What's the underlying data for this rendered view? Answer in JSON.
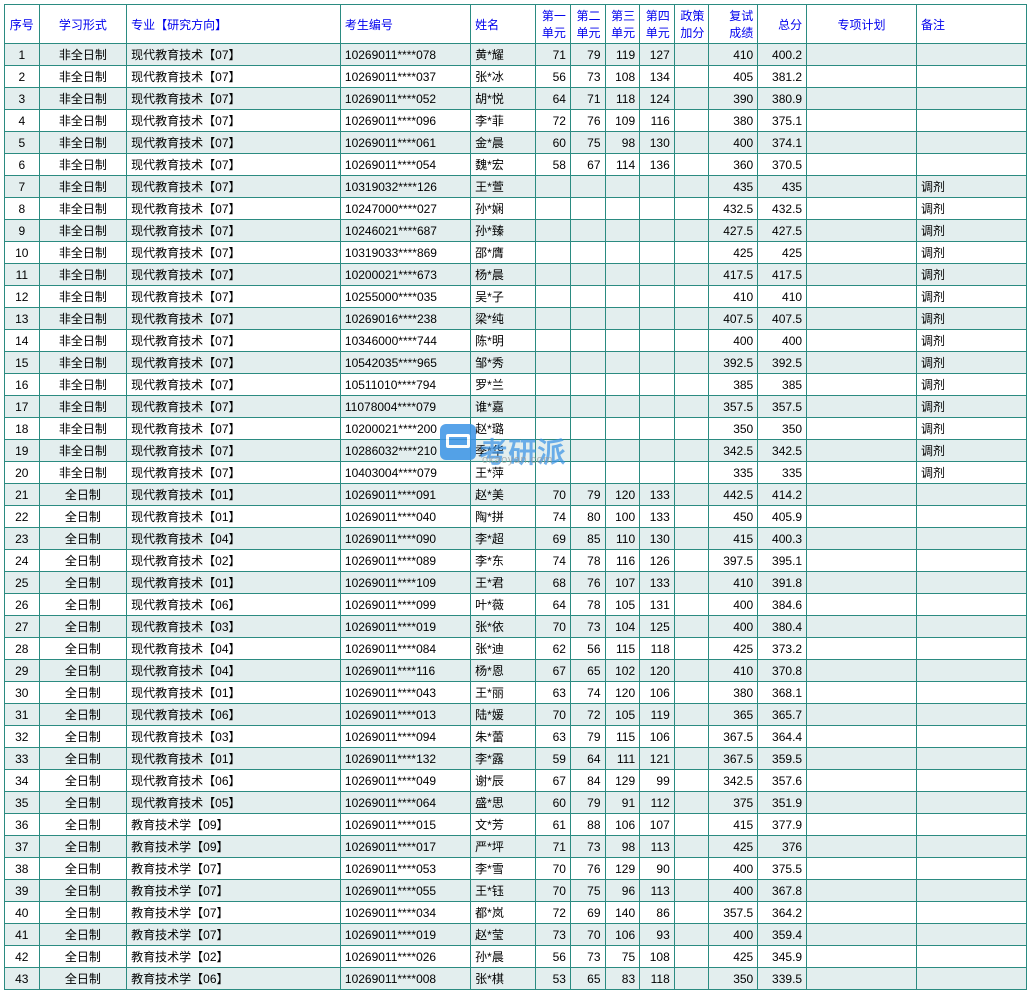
{
  "colors": {
    "border": "#2b8b81",
    "header_text": "#0000ee",
    "row_odd_bg": "#e3eeee",
    "row_even_bg": "#ffffff",
    "watermark": "#3b94e6"
  },
  "watermark": {
    "text": "考研派",
    "url": "okaoyan.com"
  },
  "columns": [
    {
      "key": "idx",
      "label": "序号",
      "cls": "c-idx"
    },
    {
      "key": "mode",
      "label": "学习形式",
      "cls": "c-mode"
    },
    {
      "key": "major",
      "label": "专业【研究方向】",
      "cls": "c-major"
    },
    {
      "key": "exam",
      "label": "考生编号",
      "cls": "c-exam"
    },
    {
      "key": "name",
      "label": "姓名",
      "cls": "c-name"
    },
    {
      "key": "u1",
      "label": "第一单元",
      "cls": "c-u"
    },
    {
      "key": "u2",
      "label": "第二单元",
      "cls": "c-u"
    },
    {
      "key": "u3",
      "label": "第三单元",
      "cls": "c-u"
    },
    {
      "key": "u4",
      "label": "第四单元",
      "cls": "c-u"
    },
    {
      "key": "pol",
      "label": "政策加分",
      "cls": "c-pol"
    },
    {
      "key": "re",
      "label": "复试成绩",
      "cls": "c-re"
    },
    {
      "key": "tot",
      "label": "总分",
      "cls": "c-tot"
    },
    {
      "key": "plan",
      "label": "专项计划",
      "cls": "c-plan"
    },
    {
      "key": "note",
      "label": "备注",
      "cls": "c-note"
    }
  ],
  "rows": [
    {
      "idx": "1",
      "mode": "非全日制",
      "major": "现代教育技术【07】",
      "exam": "10269011****078",
      "name": "黄*耀",
      "u1": "71",
      "u2": "79",
      "u3": "119",
      "u4": "127",
      "pol": "",
      "re": "410",
      "tot": "400.2",
      "plan": "",
      "note": ""
    },
    {
      "idx": "2",
      "mode": "非全日制",
      "major": "现代教育技术【07】",
      "exam": "10269011****037",
      "name": "张*冰",
      "u1": "56",
      "u2": "73",
      "u3": "108",
      "u4": "134",
      "pol": "",
      "re": "405",
      "tot": "381.2",
      "plan": "",
      "note": ""
    },
    {
      "idx": "3",
      "mode": "非全日制",
      "major": "现代教育技术【07】",
      "exam": "10269011****052",
      "name": "胡*悦",
      "u1": "64",
      "u2": "71",
      "u3": "118",
      "u4": "124",
      "pol": "",
      "re": "390",
      "tot": "380.9",
      "plan": "",
      "note": ""
    },
    {
      "idx": "4",
      "mode": "非全日制",
      "major": "现代教育技术【07】",
      "exam": "10269011****096",
      "name": "李*菲",
      "u1": "72",
      "u2": "76",
      "u3": "109",
      "u4": "116",
      "pol": "",
      "re": "380",
      "tot": "375.1",
      "plan": "",
      "note": ""
    },
    {
      "idx": "5",
      "mode": "非全日制",
      "major": "现代教育技术【07】",
      "exam": "10269011****061",
      "name": "金*晨",
      "u1": "60",
      "u2": "75",
      "u3": "98",
      "u4": "130",
      "pol": "",
      "re": "400",
      "tot": "374.1",
      "plan": "",
      "note": ""
    },
    {
      "idx": "6",
      "mode": "非全日制",
      "major": "现代教育技术【07】",
      "exam": "10269011****054",
      "name": "魏*宏",
      "u1": "58",
      "u2": "67",
      "u3": "114",
      "u4": "136",
      "pol": "",
      "re": "360",
      "tot": "370.5",
      "plan": "",
      "note": ""
    },
    {
      "idx": "7",
      "mode": "非全日制",
      "major": "现代教育技术【07】",
      "exam": "10319032****126",
      "name": "王*萱",
      "u1": "",
      "u2": "",
      "u3": "",
      "u4": "",
      "pol": "",
      "re": "435",
      "tot": "435",
      "plan": "",
      "note": "调剂"
    },
    {
      "idx": "8",
      "mode": "非全日制",
      "major": "现代教育技术【07】",
      "exam": "10247000****027",
      "name": "孙*娴",
      "u1": "",
      "u2": "",
      "u3": "",
      "u4": "",
      "pol": "",
      "re": "432.5",
      "tot": "432.5",
      "plan": "",
      "note": "调剂"
    },
    {
      "idx": "9",
      "mode": "非全日制",
      "major": "现代教育技术【07】",
      "exam": "10246021****687",
      "name": "孙*臻",
      "u1": "",
      "u2": "",
      "u3": "",
      "u4": "",
      "pol": "",
      "re": "427.5",
      "tot": "427.5",
      "plan": "",
      "note": "调剂"
    },
    {
      "idx": "10",
      "mode": "非全日制",
      "major": "现代教育技术【07】",
      "exam": "10319033****869",
      "name": "邵*膺",
      "u1": "",
      "u2": "",
      "u3": "",
      "u4": "",
      "pol": "",
      "re": "425",
      "tot": "425",
      "plan": "",
      "note": "调剂"
    },
    {
      "idx": "11",
      "mode": "非全日制",
      "major": "现代教育技术【07】",
      "exam": "10200021****673",
      "name": "杨*晨",
      "u1": "",
      "u2": "",
      "u3": "",
      "u4": "",
      "pol": "",
      "re": "417.5",
      "tot": "417.5",
      "plan": "",
      "note": "调剂"
    },
    {
      "idx": "12",
      "mode": "非全日制",
      "major": "现代教育技术【07】",
      "exam": "10255000****035",
      "name": "吴*子",
      "u1": "",
      "u2": "",
      "u3": "",
      "u4": "",
      "pol": "",
      "re": "410",
      "tot": "410",
      "plan": "",
      "note": "调剂"
    },
    {
      "idx": "13",
      "mode": "非全日制",
      "major": "现代教育技术【07】",
      "exam": "10269016****238",
      "name": "梁*纯",
      "u1": "",
      "u2": "",
      "u3": "",
      "u4": "",
      "pol": "",
      "re": "407.5",
      "tot": "407.5",
      "plan": "",
      "note": "调剂"
    },
    {
      "idx": "14",
      "mode": "非全日制",
      "major": "现代教育技术【07】",
      "exam": "10346000****744",
      "name": "陈*明",
      "u1": "",
      "u2": "",
      "u3": "",
      "u4": "",
      "pol": "",
      "re": "400",
      "tot": "400",
      "plan": "",
      "note": "调剂"
    },
    {
      "idx": "15",
      "mode": "非全日制",
      "major": "现代教育技术【07】",
      "exam": "10542035****965",
      "name": "邹*秀",
      "u1": "",
      "u2": "",
      "u3": "",
      "u4": "",
      "pol": "",
      "re": "392.5",
      "tot": "392.5",
      "plan": "",
      "note": "调剂"
    },
    {
      "idx": "16",
      "mode": "非全日制",
      "major": "现代教育技术【07】",
      "exam": "10511010****794",
      "name": "罗*兰",
      "u1": "",
      "u2": "",
      "u3": "",
      "u4": "",
      "pol": "",
      "re": "385",
      "tot": "385",
      "plan": "",
      "note": "调剂"
    },
    {
      "idx": "17",
      "mode": "非全日制",
      "major": "现代教育技术【07】",
      "exam": "11078004****079",
      "name": "谁*嘉",
      "u1": "",
      "u2": "",
      "u3": "",
      "u4": "",
      "pol": "",
      "re": "357.5",
      "tot": "357.5",
      "plan": "",
      "note": "调剂"
    },
    {
      "idx": "18",
      "mode": "非全日制",
      "major": "现代教育技术【07】",
      "exam": "10200021****200",
      "name": "赵*璐",
      "u1": "",
      "u2": "",
      "u3": "",
      "u4": "",
      "pol": "",
      "re": "350",
      "tot": "350",
      "plan": "",
      "note": "调剂"
    },
    {
      "idx": "19",
      "mode": "非全日制",
      "major": "现代教育技术【07】",
      "exam": "10286032****210",
      "name": "季*华",
      "u1": "",
      "u2": "",
      "u3": "",
      "u4": "",
      "pol": "",
      "re": "342.5",
      "tot": "342.5",
      "plan": "",
      "note": "调剂"
    },
    {
      "idx": "20",
      "mode": "非全日制",
      "major": "现代教育技术【07】",
      "exam": "10403004****079",
      "name": "王*萍",
      "u1": "",
      "u2": "",
      "u3": "",
      "u4": "",
      "pol": "",
      "re": "335",
      "tot": "335",
      "plan": "",
      "note": "调剂"
    },
    {
      "idx": "21",
      "mode": "全日制",
      "major": "现代教育技术【01】",
      "exam": "10269011****091",
      "name": "赵*美",
      "u1": "70",
      "u2": "79",
      "u3": "120",
      "u4": "133",
      "pol": "",
      "re": "442.5",
      "tot": "414.2",
      "plan": "",
      "note": ""
    },
    {
      "idx": "22",
      "mode": "全日制",
      "major": "现代教育技术【01】",
      "exam": "10269011****040",
      "name": "陶*拼",
      "u1": "74",
      "u2": "80",
      "u3": "100",
      "u4": "133",
      "pol": "",
      "re": "450",
      "tot": "405.9",
      "plan": "",
      "note": ""
    },
    {
      "idx": "23",
      "mode": "全日制",
      "major": "现代教育技术【04】",
      "exam": "10269011****090",
      "name": "李*超",
      "u1": "69",
      "u2": "85",
      "u3": "110",
      "u4": "130",
      "pol": "",
      "re": "415",
      "tot": "400.3",
      "plan": "",
      "note": ""
    },
    {
      "idx": "24",
      "mode": "全日制",
      "major": "现代教育技术【02】",
      "exam": "10269011****089",
      "name": "李*东",
      "u1": "74",
      "u2": "78",
      "u3": "116",
      "u4": "126",
      "pol": "",
      "re": "397.5",
      "tot": "395.1",
      "plan": "",
      "note": ""
    },
    {
      "idx": "25",
      "mode": "全日制",
      "major": "现代教育技术【01】",
      "exam": "10269011****109",
      "name": "王*君",
      "u1": "68",
      "u2": "76",
      "u3": "107",
      "u4": "133",
      "pol": "",
      "re": "410",
      "tot": "391.8",
      "plan": "",
      "note": ""
    },
    {
      "idx": "26",
      "mode": "全日制",
      "major": "现代教育技术【06】",
      "exam": "10269011****099",
      "name": "叶*薇",
      "u1": "64",
      "u2": "78",
      "u3": "105",
      "u4": "131",
      "pol": "",
      "re": "400",
      "tot": "384.6",
      "plan": "",
      "note": ""
    },
    {
      "idx": "27",
      "mode": "全日制",
      "major": "现代教育技术【03】",
      "exam": "10269011****019",
      "name": "张*依",
      "u1": "70",
      "u2": "73",
      "u3": "104",
      "u4": "125",
      "pol": "",
      "re": "400",
      "tot": "380.4",
      "plan": "",
      "note": ""
    },
    {
      "idx": "28",
      "mode": "全日制",
      "major": "现代教育技术【04】",
      "exam": "10269011****084",
      "name": "张*迪",
      "u1": "62",
      "u2": "56",
      "u3": "115",
      "u4": "118",
      "pol": "",
      "re": "425",
      "tot": "373.2",
      "plan": "",
      "note": ""
    },
    {
      "idx": "29",
      "mode": "全日制",
      "major": "现代教育技术【04】",
      "exam": "10269011****116",
      "name": "杨*恩",
      "u1": "67",
      "u2": "65",
      "u3": "102",
      "u4": "120",
      "pol": "",
      "re": "410",
      "tot": "370.8",
      "plan": "",
      "note": ""
    },
    {
      "idx": "30",
      "mode": "全日制",
      "major": "现代教育技术【01】",
      "exam": "10269011****043",
      "name": "王*丽",
      "u1": "63",
      "u2": "74",
      "u3": "120",
      "u4": "106",
      "pol": "",
      "re": "380",
      "tot": "368.1",
      "plan": "",
      "note": ""
    },
    {
      "idx": "31",
      "mode": "全日制",
      "major": "现代教育技术【06】",
      "exam": "10269011****013",
      "name": "陆*媛",
      "u1": "70",
      "u2": "72",
      "u3": "105",
      "u4": "119",
      "pol": "",
      "re": "365",
      "tot": "365.7",
      "plan": "",
      "note": ""
    },
    {
      "idx": "32",
      "mode": "全日制",
      "major": "现代教育技术【03】",
      "exam": "10269011****094",
      "name": "朱*蕾",
      "u1": "63",
      "u2": "79",
      "u3": "115",
      "u4": "106",
      "pol": "",
      "re": "367.5",
      "tot": "364.4",
      "plan": "",
      "note": ""
    },
    {
      "idx": "33",
      "mode": "全日制",
      "major": "现代教育技术【01】",
      "exam": "10269011****132",
      "name": "李*露",
      "u1": "59",
      "u2": "64",
      "u3": "111",
      "u4": "121",
      "pol": "",
      "re": "367.5",
      "tot": "359.5",
      "plan": "",
      "note": ""
    },
    {
      "idx": "34",
      "mode": "全日制",
      "major": "现代教育技术【06】",
      "exam": "10269011****049",
      "name": "谢*辰",
      "u1": "67",
      "u2": "84",
      "u3": "129",
      "u4": "99",
      "pol": "",
      "re": "342.5",
      "tot": "357.6",
      "plan": "",
      "note": ""
    },
    {
      "idx": "35",
      "mode": "全日制",
      "major": "现代教育技术【05】",
      "exam": "10269011****064",
      "name": "盛*思",
      "u1": "60",
      "u2": "79",
      "u3": "91",
      "u4": "112",
      "pol": "",
      "re": "375",
      "tot": "351.9",
      "plan": "",
      "note": ""
    },
    {
      "idx": "36",
      "mode": "全日制",
      "major": "教育技术学【09】",
      "exam": "10269011****015",
      "name": "文*芳",
      "u1": "61",
      "u2": "88",
      "u3": "106",
      "u4": "107",
      "pol": "",
      "re": "415",
      "tot": "377.9",
      "plan": "",
      "note": ""
    },
    {
      "idx": "37",
      "mode": "全日制",
      "major": "教育技术学【09】",
      "exam": "10269011****017",
      "name": "严*坪",
      "u1": "71",
      "u2": "73",
      "u3": "98",
      "u4": "113",
      "pol": "",
      "re": "425",
      "tot": "376",
      "plan": "",
      "note": ""
    },
    {
      "idx": "38",
      "mode": "全日制",
      "major": "教育技术学【07】",
      "exam": "10269011****053",
      "name": "李*雪",
      "u1": "70",
      "u2": "76",
      "u3": "129",
      "u4": "90",
      "pol": "",
      "re": "400",
      "tot": "375.5",
      "plan": "",
      "note": ""
    },
    {
      "idx": "39",
      "mode": "全日制",
      "major": "教育技术学【07】",
      "exam": "10269011****055",
      "name": "王*钰",
      "u1": "70",
      "u2": "75",
      "u3": "96",
      "u4": "113",
      "pol": "",
      "re": "400",
      "tot": "367.8",
      "plan": "",
      "note": ""
    },
    {
      "idx": "40",
      "mode": "全日制",
      "major": "教育技术学【07】",
      "exam": "10269011****034",
      "name": "都*岚",
      "u1": "72",
      "u2": "69",
      "u3": "140",
      "u4": "86",
      "pol": "",
      "re": "357.5",
      "tot": "364.2",
      "plan": "",
      "note": ""
    },
    {
      "idx": "41",
      "mode": "全日制",
      "major": "教育技术学【07】",
      "exam": "10269011****019",
      "name": "赵*莹",
      "u1": "73",
      "u2": "70",
      "u3": "106",
      "u4": "93",
      "pol": "",
      "re": "400",
      "tot": "359.4",
      "plan": "",
      "note": ""
    },
    {
      "idx": "42",
      "mode": "全日制",
      "major": "教育技术学【02】",
      "exam": "10269011****026",
      "name": "孙*晨",
      "u1": "56",
      "u2": "73",
      "u3": "75",
      "u4": "108",
      "pol": "",
      "re": "425",
      "tot": "345.9",
      "plan": "",
      "note": ""
    },
    {
      "idx": "43",
      "mode": "全日制",
      "major": "教育技术学【06】",
      "exam": "10269011****008",
      "name": "张*棋",
      "u1": "53",
      "u2": "65",
      "u3": "83",
      "u4": "118",
      "pol": "",
      "re": "350",
      "tot": "339.5",
      "plan": "",
      "note": ""
    }
  ]
}
